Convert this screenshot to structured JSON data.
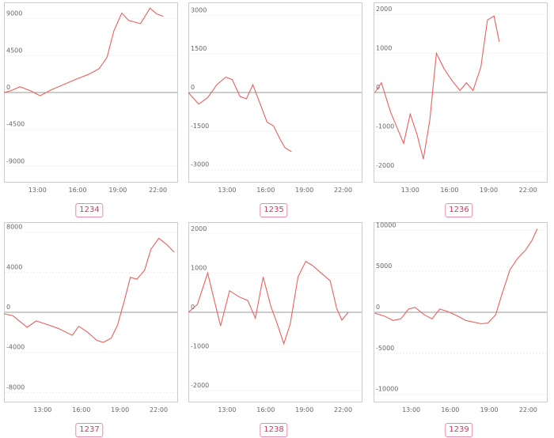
{
  "chart_data": [
    {
      "type": "line",
      "label": "1234",
      "ylim": [
        -11000,
        11000
      ],
      "yticks": [
        -9000,
        -4500,
        0,
        4500,
        9000
      ],
      "yticklabels": [
        "-9000",
        "-4500",
        "0",
        "4500",
        "9000"
      ],
      "xticks": [
        13,
        16,
        19,
        22
      ],
      "xticklabels": [
        "13:00",
        "16:00",
        "19:00",
        "22:00"
      ],
      "xlim": [
        10.5,
        23.5
      ],
      "line_color": "#e8605f",
      "x": [
        10.5,
        11,
        11.7,
        12.5,
        13.2,
        14,
        15,
        16,
        16.8,
        17.6,
        18.2,
        18.7,
        19.3,
        19.8,
        20.7,
        21.4,
        21.9,
        22.4
      ],
      "y": [
        0,
        200,
        700,
        200,
        -400,
        300,
        1000,
        1700,
        2200,
        2900,
        4300,
        7500,
        9700,
        8800,
        8400,
        10300,
        9600,
        9300
      ]
    },
    {
      "type": "line",
      "label": "1235",
      "ylim": [
        -3500,
        3500
      ],
      "yticks": [
        -3000,
        -1500,
        0,
        1500,
        3000
      ],
      "yticklabels": [
        "-3000",
        "-1500",
        "0",
        "1500",
        "3000"
      ],
      "xticks": [
        13,
        16,
        19,
        22
      ],
      "xticklabels": [
        "13:00",
        "16:00",
        "19:00",
        "22:00"
      ],
      "xlim": [
        10,
        23.5
      ],
      "line_color": "#e8605f",
      "x": [
        10,
        10.8,
        11.5,
        12.2,
        12.9,
        13.4,
        14,
        14.5,
        15,
        15.5,
        16.1,
        16.6,
        17.1,
        17.5,
        18
      ],
      "y": [
        0,
        -450,
        -200,
        300,
        600,
        500,
        -150,
        -250,
        300,
        -350,
        -1150,
        -1300,
        -1800,
        -2150,
        -2300
      ]
    },
    {
      "type": "line",
      "label": "1236",
      "ylim": [
        -2300,
        2300
      ],
      "yticks": [
        -2000,
        -1000,
        0,
        1000,
        2000
      ],
      "yticklabels": [
        "-2000",
        "-1000",
        "0",
        "1000",
        "2000"
      ],
      "xticks": [
        13,
        16,
        19,
        22
      ],
      "xticklabels": [
        "13:00",
        "16:00",
        "19:00",
        "22:00"
      ],
      "xlim": [
        10.2,
        23.5
      ],
      "line_color": "#e8605f",
      "x": [
        10.3,
        10.8,
        11.5,
        12.5,
        13,
        13.5,
        14,
        14.5,
        15,
        15.6,
        16.2,
        16.8,
        17.3,
        17.8,
        18.4,
        18.9,
        19.4,
        19.8
      ],
      "y": [
        0,
        250,
        -500,
        -1300,
        -550,
        -1050,
        -1700,
        -700,
        1000,
        600,
        300,
        50,
        250,
        50,
        650,
        1850,
        1950,
        1300
      ]
    },
    {
      "type": "line",
      "label": "1237",
      "ylim": [
        -9000,
        9000
      ],
      "yticks": [
        -8000,
        -4000,
        0,
        4000,
        8000
      ],
      "yticklabels": [
        "-8000",
        "-4000",
        "0",
        "4000",
        "8000"
      ],
      "xticks": [
        13,
        16,
        19,
        22
      ],
      "xticklabels": [
        "13:00",
        "16:00",
        "19:00",
        "22:00"
      ],
      "xlim": [
        10,
        23.5
      ],
      "line_color": "#e8605f",
      "x": [
        10,
        10.7,
        11.8,
        12.5,
        13.2,
        14.2,
        15.3,
        15.8,
        16.5,
        17.2,
        17.7,
        18.3,
        18.8,
        19.3,
        19.8,
        20.3,
        20.9,
        21.4,
        22,
        22.6,
        23.2
      ],
      "y": [
        -150,
        -350,
        -1500,
        -850,
        -1150,
        -1600,
        -2300,
        -1400,
        -2000,
        -2800,
        -3000,
        -2600,
        -1300,
        1000,
        3500,
        3300,
        4200,
        6300,
        7400,
        6800,
        6000
      ]
    },
    {
      "type": "line",
      "label": "1238",
      "ylim": [
        -2300,
        2300
      ],
      "yticks": [
        -2000,
        -1000,
        0,
        1000,
        2000
      ],
      "yticklabels": [
        "-2000",
        "-1000",
        "0",
        "1000",
        "2000"
      ],
      "xticks": [
        13,
        16,
        19,
        22
      ],
      "xticklabels": [
        "13:00",
        "16:00",
        "19:00",
        "22:00"
      ],
      "xlim": [
        10,
        23.5
      ],
      "line_color": "#e8605f",
      "x": [
        10,
        10.7,
        11.5,
        12.5,
        13.2,
        13.9,
        14.6,
        15.2,
        15.8,
        16.4,
        16.9,
        17.4,
        17.9,
        18.5,
        19.1,
        19.6,
        20.3,
        21,
        21.5,
        21.9,
        22.4
      ],
      "y": [
        0,
        200,
        1000,
        -350,
        550,
        400,
        300,
        -150,
        900,
        150,
        -300,
        -800,
        -300,
        900,
        1300,
        1200,
        1000,
        800,
        100,
        -200,
        0
      ]
    },
    {
      "type": "line",
      "label": "1239",
      "ylim": [
        -11000,
        11000
      ],
      "yticks": [
        -10000,
        -5000,
        0,
        5000,
        10000
      ],
      "yticklabels": [
        "-10000",
        "-5000",
        "0",
        "5000",
        "10000"
      ],
      "xticks": [
        13,
        16,
        19,
        22
      ],
      "xticklabels": [
        "13:00",
        "16:00",
        "19:00",
        "22:00"
      ],
      "xlim": [
        10.1,
        23.5
      ],
      "line_color": "#e8605f",
      "x": [
        10.2,
        11,
        11.6,
        12.2,
        12.8,
        13.3,
        14,
        14.6,
        15.2,
        15.8,
        16.5,
        17.2,
        17.8,
        18.4,
        18.9,
        19.5,
        20,
        20.6,
        21.2,
        21.8,
        22.3,
        22.7
      ],
      "y": [
        -100,
        -500,
        -1000,
        -800,
        400,
        600,
        -300,
        -800,
        400,
        100,
        -400,
        -1000,
        -1200,
        -1400,
        -1300,
        -300,
        2300,
        5200,
        6600,
        7600,
        8800,
        10200
      ]
    }
  ]
}
